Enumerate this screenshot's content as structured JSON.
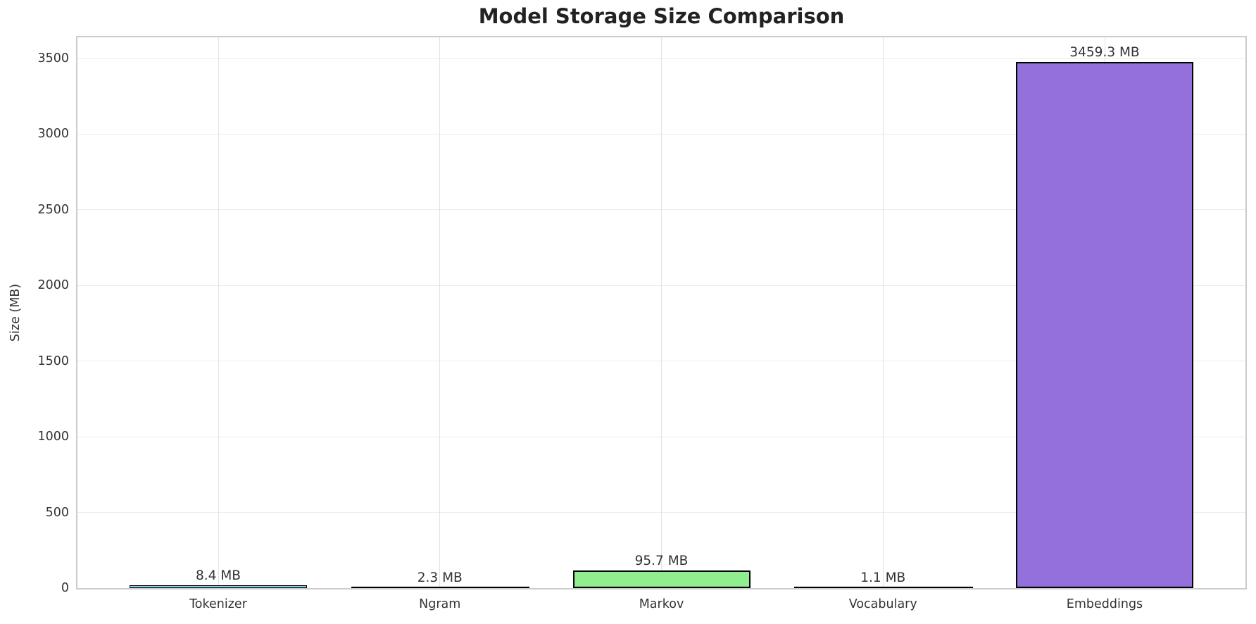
{
  "chart_data": {
    "type": "bar",
    "title": "Model Storage Size Comparison",
    "xlabel": "",
    "ylabel": "Size (MB)",
    "categories": [
      "Tokenizer",
      "Ngram",
      "Markov",
      "Vocabulary",
      "Embeddings"
    ],
    "values": [
      8.4,
      2.3,
      95.7,
      1.1,
      3459.3
    ],
    "bar_labels": [
      "8.4 MB",
      "2.3 MB",
      "95.7 MB",
      "1.1 MB",
      "3459.3 MB"
    ],
    "bar_colors": [
      "#87CEEB",
      "#FA8072",
      "#90EE90",
      "#FFD700",
      "#9370DB"
    ],
    "bar_edge_color": "#000000",
    "ylim": [
      0,
      3640
    ],
    "yticks": [
      0,
      500,
      1000,
      1500,
      2000,
      2500,
      3000,
      3500
    ],
    "grid": true,
    "grid_color": "#ebebeb",
    "spine_color": "#cccccc",
    "background_color": "#ffffff",
    "text_color": "#333333",
    "title_color": "#222222",
    "legend": false
  }
}
